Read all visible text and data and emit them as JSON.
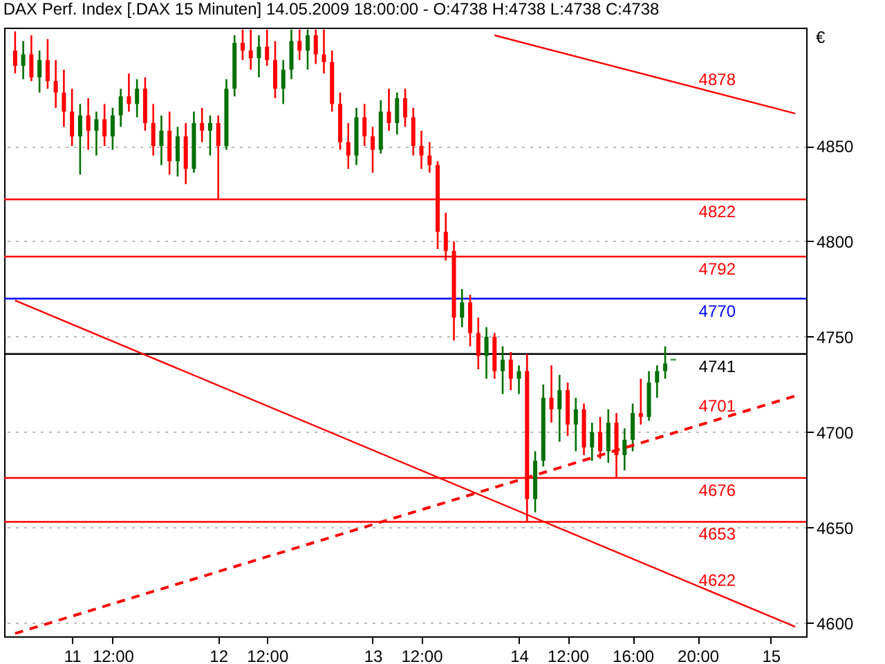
{
  "chart_data": {
    "type": "candlestick",
    "title": "DAX Perf. Index [.DAX  15 Minuten] 14.05.2009 18:00:00 - O:4738 H:4738 L:4738 C:4738",
    "ylabel": "€",
    "categories": [
      null,
      null,
      null,
      null,
      null,
      null,
      null,
      "11",
      null,
      null,
      null,
      null,
      "12:00",
      null,
      null,
      null,
      null,
      null,
      null,
      null,
      null,
      null,
      null,
      null,
      null,
      "12",
      null,
      null,
      null,
      null,
      null,
      "12:00",
      null,
      null,
      null,
      null,
      null,
      null,
      null,
      null,
      null,
      null,
      null,
      null,
      "13",
      null,
      null,
      null,
      null,
      null,
      "12:00",
      null,
      null,
      null,
      null,
      null,
      null,
      null,
      null,
      null,
      null,
      null,
      "14",
      null,
      null,
      null,
      null,
      null,
      "12:00",
      null,
      null,
      null,
      null,
      null,
      null,
      null,
      "16:00",
      null,
      null,
      null,
      null,
      null,
      null,
      null,
      "20:00",
      null,
      null,
      null,
      null,
      null,
      null,
      null,
      null,
      "15",
      null,
      null,
      null
    ],
    "ylim": [
      4593,
      4912
    ],
    "yticks": [
      4600,
      4650,
      4700,
      4750,
      4800,
      4850
    ],
    "grid": "y",
    "legend": false,
    "series": [
      {
        "type": "candlestick",
        "color": "#007000",
        "ohlc": [
          null,
          [
            4892,
            4905,
            4885,
            4898
          ],
          null,
          [
            4886,
            4900,
            4878,
            4895
          ],
          null,
          null,
          null,
          null,
          [
            4855,
            4872,
            4835,
            4866
          ],
          null,
          [
            4858,
            4868,
            4845,
            4864
          ],
          null,
          [
            4855,
            4870,
            4848,
            4866
          ],
          [
            4866,
            4880,
            4860,
            4876
          ],
          null,
          [
            4872,
            4885,
            4865,
            4880
          ],
          null,
          null,
          [
            4850,
            4866,
            4840,
            4858
          ],
          null,
          [
            4842,
            4860,
            4834,
            4855
          ],
          null,
          [
            4838,
            4868,
            4836,
            4862
          ],
          null,
          [
            4858,
            4866,
            4845,
            4862
          ],
          null,
          [
            4850,
            4885,
            4848,
            4880
          ],
          [
            4880,
            4908,
            4876,
            4904
          ],
          null,
          null,
          [
            4896,
            4908,
            4886,
            4902
          ],
          null,
          null,
          [
            4880,
            4895,
            4872,
            4890
          ],
          [
            4890,
            4911,
            4885,
            4905
          ],
          null,
          [
            4900,
            4911,
            4890,
            4908
          ],
          null,
          null,
          null,
          null,
          null,
          [
            4845,
            4870,
            4840,
            4865
          ],
          null,
          null,
          [
            4848,
            4874,
            4846,
            4868
          ],
          null,
          [
            4862,
            4878,
            4856,
            4875
          ],
          null,
          null,
          null,
          null,
          null,
          null,
          null,
          [
            4760,
            4775,
            4755,
            4768
          ],
          null,
          null,
          [
            4740,
            4755,
            4728,
            4750
          ],
          null,
          [
            4732,
            4745,
            4720,
            4738
          ],
          null,
          [
            4728,
            4735,
            4720,
            4732
          ],
          null,
          [
            4665,
            4690,
            4658,
            4685
          ],
          [
            4685,
            4725,
            4682,
            4718
          ],
          null,
          [
            4712,
            4730,
            4695,
            4722
          ],
          null,
          [
            4704,
            4718,
            4690,
            4712
          ],
          null,
          [
            4692,
            4705,
            4685,
            4700
          ],
          null,
          [
            4690,
            4712,
            4684,
            4705
          ],
          null,
          [
            4688,
            4702,
            4680,
            4696
          ],
          [
            4696,
            4715,
            4690,
            4710
          ],
          null,
          [
            4708,
            4732,
            4706,
            4726
          ],
          [
            4726,
            4735,
            4718,
            4732
          ],
          [
            4732,
            4745,
            4728,
            4736
          ],
          [
            4738,
            4738,
            4738,
            4738
          ],
          null,
          null,
          null,
          null,
          null,
          null,
          null,
          null,
          null,
          null,
          null,
          null,
          null,
          null,
          null
        ]
      },
      {
        "type": "candlestick",
        "color": "#ff0000",
        "ohlc": [
          [
            4900,
            4910,
            4888,
            4892
          ],
          null,
          [
            4898,
            4908,
            4884,
            4886
          ],
          null,
          [
            4895,
            4906,
            4880,
            4884
          ],
          [
            4884,
            4895,
            4870,
            4878
          ],
          [
            4878,
            4890,
            4860,
            4868
          ],
          [
            4868,
            4880,
            4850,
            4855
          ],
          null,
          [
            4866,
            4875,
            4848,
            4858
          ],
          null,
          [
            4864,
            4872,
            4850,
            4855
          ],
          null,
          null,
          [
            4876,
            4888,
            4868,
            4872
          ],
          null,
          [
            4880,
            4886,
            4858,
            4862
          ],
          [
            4862,
            4872,
            4845,
            4850
          ],
          null,
          [
            4858,
            4868,
            4835,
            4842
          ],
          null,
          [
            4855,
            4862,
            4830,
            4838
          ],
          null,
          [
            4862,
            4870,
            4852,
            4858
          ],
          null,
          [
            4862,
            4866,
            4822,
            4850
          ],
          null,
          null,
          [
            4904,
            4911,
            4895,
            4900
          ],
          [
            4900,
            4911,
            4890,
            4896
          ],
          null,
          [
            4902,
            4911,
            4892,
            4895
          ],
          [
            4895,
            4905,
            4875,
            4880
          ],
          null,
          null,
          [
            4905,
            4911,
            4895,
            4900
          ],
          null,
          [
            4908,
            4911,
            4893,
            4898
          ],
          [
            4898,
            4911,
            4888,
            4894
          ],
          [
            4894,
            4900,
            4868,
            4872
          ],
          [
            4872,
            4878,
            4848,
            4852
          ],
          [
            4852,
            4862,
            4838,
            4845
          ],
          null,
          [
            4865,
            4872,
            4850,
            4855
          ],
          [
            4855,
            4860,
            4836,
            4848
          ],
          null,
          [
            4868,
            4880,
            4858,
            4862
          ],
          null,
          [
            4875,
            4880,
            4860,
            4865
          ],
          [
            4865,
            4870,
            4845,
            4850
          ],
          [
            4850,
            4858,
            4838,
            4845
          ],
          [
            4845,
            4852,
            4836,
            4840
          ],
          [
            4840,
            4842,
            4796,
            4805
          ],
          [
            4805,
            4815,
            4790,
            4795
          ],
          [
            4795,
            4800,
            4748,
            4760
          ],
          null,
          [
            4768,
            4772,
            4745,
            4752
          ],
          [
            4752,
            4760,
            4733,
            4740
          ],
          null,
          [
            4750,
            4752,
            4728,
            4732
          ],
          null,
          [
            4738,
            4742,
            4722,
            4728
          ],
          null,
          [
            4732,
            4741,
            4653,
            4665
          ],
          null,
          null,
          [
            4718,
            4735,
            4705,
            4712
          ],
          null,
          [
            4722,
            4726,
            4698,
            4704
          ],
          null,
          [
            4712,
            4715,
            4688,
            4692
          ],
          null,
          [
            4700,
            4708,
            4686,
            4690
          ],
          null,
          [
            4705,
            4710,
            4676,
            4688
          ],
          null,
          null,
          [
            4710,
            4728,
            4704,
            4708
          ],
          null,
          null,
          null,
          null,
          null,
          null,
          null,
          null,
          null,
          null,
          null,
          null,
          null,
          null,
          null,
          null,
          null,
          null,
          null
        ]
      },
      {
        "type": "line",
        "name": "4878",
        "color": "#ff0000",
        "values": [
          null,
          null,
          null,
          null,
          null,
          null,
          null,
          null,
          null,
          null,
          null,
          null,
          null,
          null,
          null,
          null,
          null,
          null,
          null,
          null,
          null,
          null,
          null,
          null,
          null,
          null,
          null,
          null,
          null,
          null,
          null,
          null,
          null,
          null,
          null,
          null,
          null,
          null,
          null,
          null,
          null,
          null,
          null,
          null,
          null,
          null,
          null,
          null,
          null,
          null,
          null,
          null,
          null,
          null,
          null,
          null,
          null,
          null,
          null,
          4908,
          null,
          null,
          null,
          null,
          null,
          null,
          null,
          null,
          null,
          null,
          null,
          null,
          null,
          null,
          null,
          null,
          null,
          null,
          null,
          null,
          null,
          null,
          null,
          null,
          null,
          null,
          null,
          null,
          null,
          null,
          null,
          null,
          null,
          null,
          null,
          null,
          4867
        ]
      },
      {
        "type": "line",
        "name": "4622",
        "color": "#ff0000",
        "values": [
          4769,
          null,
          null,
          null,
          null,
          null,
          null,
          null,
          null,
          null,
          null,
          null,
          null,
          null,
          null,
          null,
          null,
          null,
          null,
          null,
          null,
          null,
          null,
          null,
          null,
          null,
          null,
          null,
          null,
          null,
          null,
          null,
          null,
          null,
          null,
          null,
          null,
          null,
          null,
          null,
          null,
          null,
          null,
          null,
          null,
          null,
          null,
          null,
          null,
          null,
          null,
          null,
          null,
          null,
          null,
          null,
          null,
          null,
          null,
          null,
          null,
          null,
          null,
          null,
          null,
          null,
          null,
          null,
          null,
          null,
          null,
          null,
          null,
          null,
          null,
          null,
          null,
          null,
          null,
          null,
          null,
          null,
          null,
          null,
          null,
          null,
          null,
          null,
          null,
          null,
          null,
          null,
          null,
          null,
          null,
          null,
          4598
        ]
      },
      {
        "type": "line",
        "name": "4701",
        "color": "#ff0000",
        "line_style": "dashed",
        "values": [
          4594.5,
          null,
          null,
          null,
          null,
          null,
          null,
          null,
          null,
          null,
          null,
          null,
          null,
          null,
          null,
          null,
          null,
          null,
          null,
          null,
          null,
          null,
          null,
          null,
          null,
          null,
          null,
          null,
          null,
          null,
          null,
          null,
          null,
          null,
          null,
          null,
          null,
          null,
          null,
          null,
          null,
          null,
          null,
          null,
          null,
          null,
          null,
          null,
          null,
          null,
          null,
          null,
          null,
          null,
          null,
          null,
          null,
          null,
          null,
          null,
          null,
          null,
          null,
          null,
          null,
          null,
          null,
          null,
          null,
          null,
          null,
          null,
          null,
          null,
          null,
          null,
          null,
          null,
          null,
          null,
          null,
          null,
          null,
          null,
          null,
          null,
          null,
          null,
          null,
          null,
          null,
          null,
          null,
          null,
          null,
          null,
          4719
        ]
      }
    ],
    "ref_lines": [
      {
        "axis": "y",
        "value": 4822,
        "label": "4822",
        "color": "#ff0000"
      },
      {
        "axis": "y",
        "value": 4792,
        "label": "4792",
        "color": "#ff0000"
      },
      {
        "axis": "y",
        "value": 4770,
        "label": "4770",
        "color": "#0000ff"
      },
      {
        "axis": "y",
        "value": 4741,
        "label": "4741",
        "color": "#000000"
      },
      {
        "axis": "y",
        "value": 4676,
        "label": "4676",
        "color": "#ff0000"
      },
      {
        "axis": "y",
        "value": 4653,
        "label": "4653",
        "color": "#ff0000"
      }
    ]
  }
}
